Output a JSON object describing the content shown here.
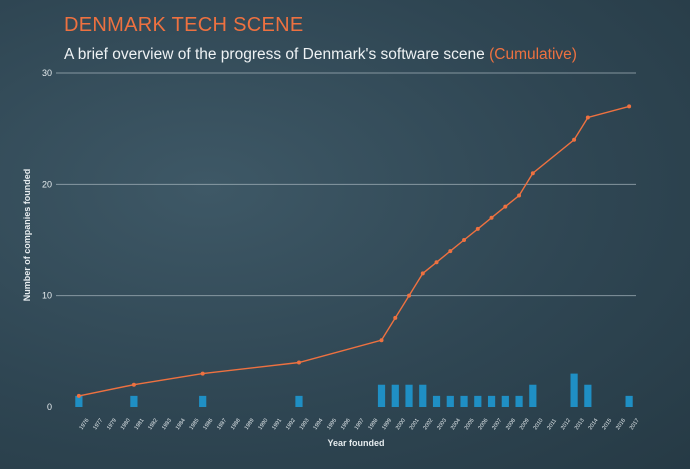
{
  "header": {
    "title": "DENMARK TECH SCENE",
    "subtitle": "A brief overview of the progress of Denmark's software scene",
    "subtitle_accent": "(Cumulative)"
  },
  "colors": {
    "line": "#ee7140",
    "bar": "#1f8fc4",
    "title": "#ee7140"
  },
  "chart_data": {
    "type": "bar+line",
    "title": "DENMARK TECH SCENE",
    "subtitle": "A brief overview of the progress of Denmark's software scene (Cumulative)",
    "xlabel": "Year founded",
    "ylabel": "Number of companies founded",
    "ylim": [
      0,
      30
    ],
    "yticks": [
      0,
      10,
      20,
      30
    ],
    "grid": true,
    "categories": [
      "1976",
      "1977",
      "1979",
      "1980",
      "1981",
      "1982",
      "1983",
      "1984",
      "1985",
      "1986",
      "1987",
      "1988",
      "1989",
      "1990",
      "1991",
      "1992",
      "1993",
      "1994",
      "1995",
      "1996",
      "1997",
      "1998",
      "1999",
      "2000",
      "2001",
      "2002",
      "2003",
      "2004",
      "2005",
      "2006",
      "2007",
      "2008",
      "2009",
      "2010",
      "2011",
      "2012",
      "2013",
      "2014",
      "2015",
      "2016",
      "2017"
    ],
    "series": [
      {
        "type": "bar",
        "values": [
          1,
          0,
          0,
          0,
          1,
          0,
          0,
          0,
          0,
          1,
          0,
          0,
          0,
          0,
          0,
          0,
          1,
          0,
          0,
          0,
          0,
          0,
          2,
          2,
          2,
          2,
          1,
          1,
          1,
          1,
          1,
          1,
          1,
          2,
          0,
          0,
          3,
          2,
          0,
          0,
          1
        ]
      },
      {
        "type": "line",
        "values": [
          1,
          null,
          null,
          null,
          2,
          null,
          null,
          null,
          null,
          3,
          null,
          null,
          null,
          null,
          null,
          null,
          4,
          null,
          null,
          null,
          null,
          null,
          6,
          8,
          10,
          12,
          13,
          14,
          15,
          16,
          17,
          18,
          19,
          21,
          null,
          null,
          24,
          26,
          null,
          null,
          27
        ]
      }
    ]
  }
}
